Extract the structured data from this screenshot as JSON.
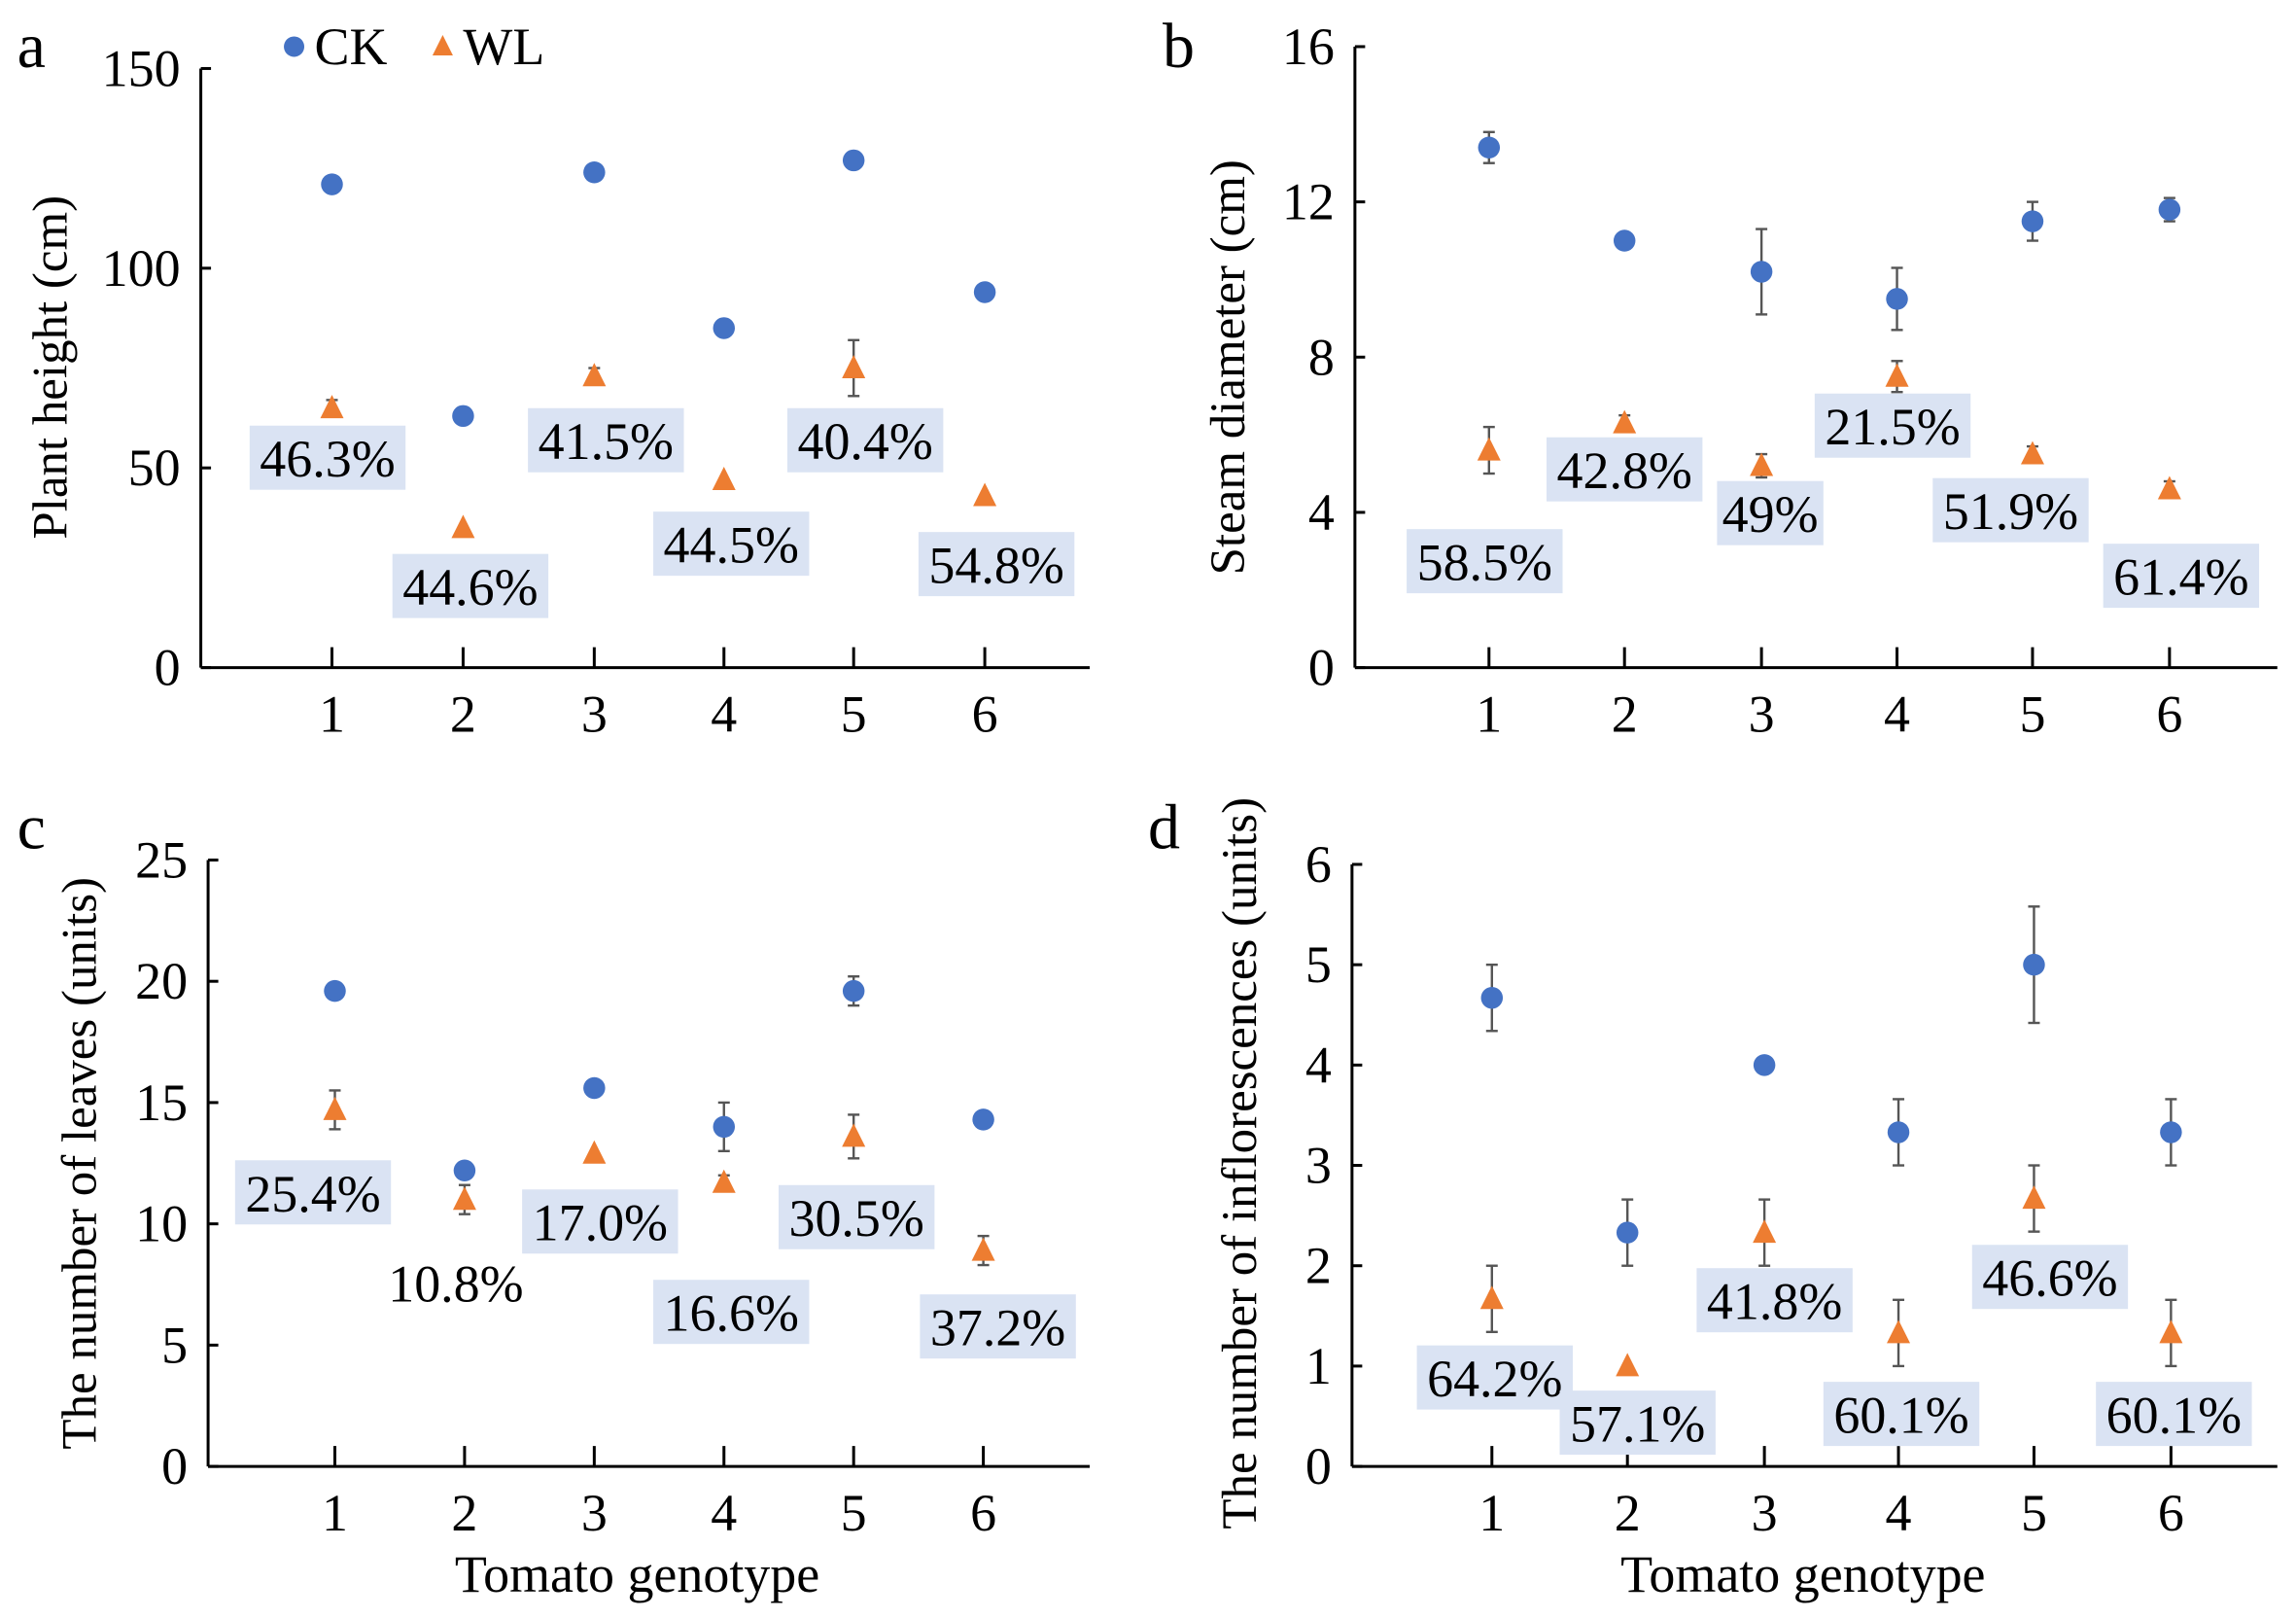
{
  "colors": {
    "CK": "#4472C4",
    "WL": "#ED7D31",
    "label_bg": "#DAE3F3",
    "axis": "#000000",
    "error_bar": "#555555"
  },
  "legend": {
    "items": [
      {
        "name": "CK",
        "marker": "circle"
      },
      {
        "name": "WL",
        "marker": "triangle"
      }
    ],
    "placement": "top-left of panel a"
  },
  "chart_data": [
    {
      "panel": "a",
      "type": "scatter",
      "ylabel": "Plant height (cm)",
      "xlabel": "",
      "categories": [
        "1",
        "2",
        "3",
        "4",
        "5",
        "6"
      ],
      "ylim": [
        0,
        150
      ],
      "yticks": [
        "0",
        "50",
        "100",
        "150"
      ],
      "series": [
        {
          "name": "CK",
          "values": [
            121,
            63,
            124,
            85,
            127,
            94
          ],
          "errors": [
            0,
            0,
            0,
            0,
            0,
            0
          ]
        },
        {
          "name": "WL",
          "values": [
            65,
            35,
            73,
            47,
            75,
            43
          ],
          "errors": [
            2,
            0,
            2,
            0,
            7,
            0
          ]
        }
      ],
      "annotations": [
        "46.3%",
        "44.6%",
        "41.5%",
        "44.5%",
        "40.4%",
        "54.8%"
      ]
    },
    {
      "panel": "b",
      "type": "scatter",
      "ylabel": "Steam diameter (cm)",
      "xlabel": "",
      "categories": [
        "1",
        "2",
        "3",
        "4",
        "5",
        "6"
      ],
      "ylim": [
        0,
        16
      ],
      "yticks": [
        "0",
        "4",
        "8",
        "12",
        "16"
      ],
      "series": [
        {
          "name": "CK",
          "values": [
            13.4,
            11.0,
            10.2,
            9.5,
            11.5,
            11.8
          ],
          "errors": [
            0.4,
            0.2,
            1.1,
            0.8,
            0.5,
            0.3
          ]
        },
        {
          "name": "WL",
          "values": [
            5.6,
            6.3,
            5.2,
            7.5,
            5.5,
            4.6
          ],
          "errors": [
            0.6,
            0.2,
            0.3,
            0.4,
            0.2,
            0.2
          ]
        }
      ],
      "annotations": [
        "58.5%",
        "42.8%",
        "49%",
        "21.5%",
        "51.9%",
        "61.4%"
      ]
    },
    {
      "panel": "c",
      "type": "scatter",
      "ylabel": "The number of leaves (units)",
      "xlabel": "Tomato genotype",
      "categories": [
        "1",
        "2",
        "3",
        "4",
        "5",
        "6"
      ],
      "ylim": [
        0,
        25
      ],
      "yticks": [
        "0",
        "5",
        "10",
        "15",
        "20",
        "25"
      ],
      "series": [
        {
          "name": "CK",
          "values": [
            19.6,
            12.2,
            15.6,
            14.0,
            19.6,
            14.3
          ],
          "errors": [
            0,
            0,
            0,
            1.0,
            0.6,
            0
          ]
        },
        {
          "name": "WL",
          "values": [
            14.7,
            11.0,
            12.9,
            11.7,
            13.6,
            8.9
          ],
          "errors": [
            0.8,
            0.6,
            0,
            0.3,
            0.9,
            0.6
          ]
        }
      ],
      "annotations": [
        "25.4%",
        "10.8%",
        "17.0%",
        "16.6%",
        "30.5%",
        "37.2%"
      ]
    },
    {
      "panel": "d",
      "type": "scatter",
      "ylabel": "The number of inflorescences (units)",
      "xlabel": "Tomato genotype",
      "categories": [
        "1",
        "2",
        "3",
        "4",
        "5",
        "6"
      ],
      "ylim": [
        0,
        6
      ],
      "yticks": [
        "0",
        "1",
        "2",
        "3",
        "4",
        "5",
        "6"
      ],
      "series": [
        {
          "name": "CK",
          "values": [
            4.67,
            2.33,
            4.0,
            3.33,
            5.0,
            3.33
          ],
          "errors": [
            0.33,
            0.33,
            0,
            0.33,
            0.58,
            0.33
          ]
        },
        {
          "name": "WL",
          "values": [
            1.67,
            1.0,
            2.33,
            1.33,
            2.67,
            1.33
          ],
          "errors": [
            0.33,
            0,
            0.33,
            0.33,
            0.33,
            0.33
          ]
        }
      ],
      "annotations": [
        "64.2%",
        "57.1%",
        "41.8%",
        "60.1%",
        "46.6%",
        "60.1%"
      ]
    }
  ]
}
